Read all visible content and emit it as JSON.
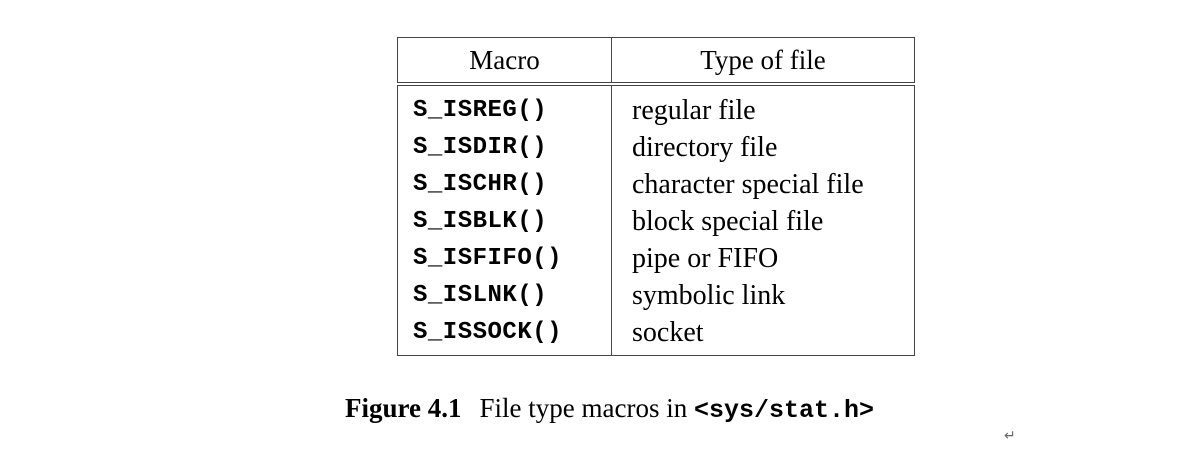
{
  "table": {
    "headers": [
      "Macro",
      "Type of file"
    ],
    "rows": [
      {
        "macro": "S_ISREG()",
        "type": "regular file"
      },
      {
        "macro": "S_ISDIR()",
        "type": "directory file"
      },
      {
        "macro": "S_ISCHR()",
        "type": "character special file"
      },
      {
        "macro": "S_ISBLK()",
        "type": "block special file"
      },
      {
        "macro": "S_ISFIFO()",
        "type": "pipe or FIFO"
      },
      {
        "macro": "S_ISLNK()",
        "type": "symbolic link"
      },
      {
        "macro": "S_ISSOCK()",
        "type": "socket"
      }
    ]
  },
  "caption": {
    "label": "Figure 4.1",
    "text": "File type macros in ",
    "code": "<sys/stat.h>"
  },
  "paragraph_mark": "↵"
}
